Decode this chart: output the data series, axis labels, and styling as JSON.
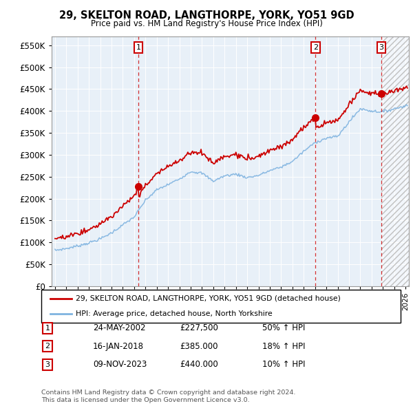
{
  "title": "29, SKELTON ROAD, LANGTHORPE, YORK, YO51 9GD",
  "subtitle": "Price paid vs. HM Land Registry's House Price Index (HPI)",
  "ylim": [
    0,
    570000
  ],
  "yticks": [
    0,
    50000,
    100000,
    150000,
    200000,
    250000,
    300000,
    350000,
    400000,
    450000,
    500000,
    550000
  ],
  "xlim_start": 1994.7,
  "xlim_end": 2026.3,
  "sale_prices": [
    227500,
    385000,
    440000
  ],
  "sale_labels": [
    "1",
    "2",
    "3"
  ],
  "sale_pct": [
    "50% ↑ HPI",
    "18% ↑ HPI",
    "10% ↑ HPI"
  ],
  "sale_date_strs": [
    "24-MAY-2002",
    "16-JAN-2018",
    "09-NOV-2023"
  ],
  "sale_price_strs": [
    "£227,500",
    "£385.000",
    "£440.000"
  ],
  "legend_line1": "29, SKELTON ROAD, LANGTHORPE, YORK, YO51 9GD (detached house)",
  "legend_line2": "HPI: Average price, detached house, North Yorkshire",
  "footnote": "Contains HM Land Registry data © Crown copyright and database right 2024.\nThis data is licensed under the Open Government Licence v3.0.",
  "hpi_color": "#7fb3e0",
  "price_color": "#cc0000",
  "bg_color": "#e8f0f8",
  "grid_color": "#ffffff"
}
